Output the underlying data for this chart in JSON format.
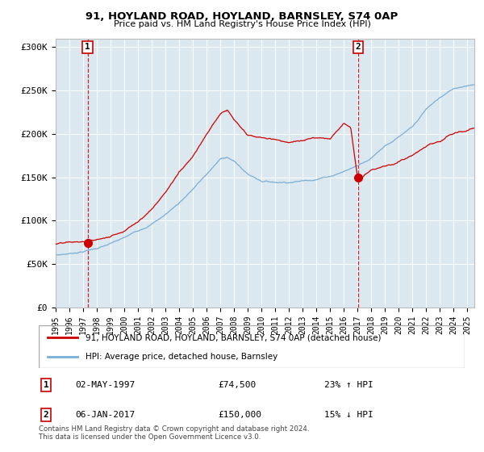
{
  "title1": "91, HOYLAND ROAD, HOYLAND, BARNSLEY, S74 0AP",
  "title2": "Price paid vs. HM Land Registry's House Price Index (HPI)",
  "ylabel_ticks": [
    "£0",
    "£50K",
    "£100K",
    "£150K",
    "£200K",
    "£250K",
    "£300K"
  ],
  "ytick_values": [
    0,
    50000,
    100000,
    150000,
    200000,
    250000,
    300000
  ],
  "ylim": [
    0,
    310000
  ],
  "xlim_start": 1995.0,
  "xlim_end": 2025.5,
  "sale1_date": 1997.33,
  "sale1_price": 74500,
  "sale2_date": 2017.03,
  "sale2_price": 150000,
  "red_line_color": "#cc0000",
  "blue_line_color": "#7aaed6",
  "legend_label1": "91, HOYLAND ROAD, HOYLAND, BARNSLEY, S74 0AP (detached house)",
  "legend_label2": "HPI: Average price, detached house, Barnsley",
  "table_row1_num": "1",
  "table_row1_date": "02-MAY-1997",
  "table_row1_price": "£74,500",
  "table_row1_hpi": "23% ↑ HPI",
  "table_row2_num": "2",
  "table_row2_date": "06-JAN-2017",
  "table_row2_price": "£150,000",
  "table_row2_hpi": "15% ↓ HPI",
  "footnote": "Contains HM Land Registry data © Crown copyright and database right 2024.\nThis data is licensed under the Open Government Licence v3.0.",
  "bg_color": "#ffffff",
  "plot_bg_color": "#dce8f0"
}
